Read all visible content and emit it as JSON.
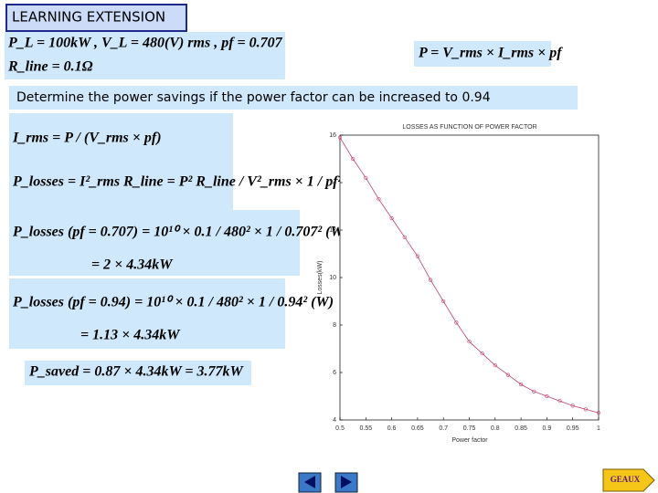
{
  "header": {
    "title": "LEARNING EXTENSION"
  },
  "given": [
    "P_L = 100kW , V_L = 480(V) rms , pf = 0.707",
    "R_line = 0.1Ω"
  ],
  "formula": "P = V_rms × I_rms × pf",
  "question": "Determine the power savings if the power factor can be increased to 0.94",
  "steps": [
    "I_rms = P / (V_rms × pf)",
    "P_losses = I²_rms R_line = P² R_line / V²_rms × 1 / pf²",
    "P_losses (pf = 0.707) = 10¹⁰ × 0.1 / 480² × 1 / 0.707² (W)",
    "= 2 × 4.34kW",
    "P_losses (pf = 0.94) = 10¹⁰ × 0.1 / 480² × 1 / 0.94² (W)",
    "= 1.13 × 4.34kW",
    "P_saved = 0.87 × 4.34kW = 3.77kW"
  ],
  "nav": {
    "forward_label": "GEAUX"
  },
  "chart_data": {
    "type": "line",
    "title": "LOSSES AS FUNCTION OF POWER FACTOR",
    "x_label": "Power factor",
    "y_label": "Losses(kW)",
    "color": "#c04070",
    "x": [
      0.5,
      0.525,
      0.55,
      0.575,
      0.6,
      0.625,
      0.65,
      0.675,
      0.7,
      0.725,
      0.75,
      0.775,
      0.8,
      0.825,
      0.85,
      0.875,
      0.9,
      0.925,
      0.95,
      0.975,
      1
    ],
    "values": [
      15.9,
      15.0,
      14.2,
      13.3,
      12.5,
      11.7,
      10.9,
      9.9,
      9.0,
      8.1,
      7.3,
      6.8,
      6.3,
      5.9,
      5.5,
      5.2,
      5.0,
      4.8,
      4.6,
      4.45,
      4.3
    ],
    "xlim": [
      0.5,
      1
    ],
    "ylim": [
      4,
      16
    ],
    "xticks": [
      0.5,
      0.55,
      0.6,
      0.65,
      0.7,
      0.75,
      0.8,
      0.85,
      0.9,
      0.95,
      1
    ],
    "yticks": [
      4,
      6,
      8,
      10,
      12,
      14,
      16
    ]
  }
}
